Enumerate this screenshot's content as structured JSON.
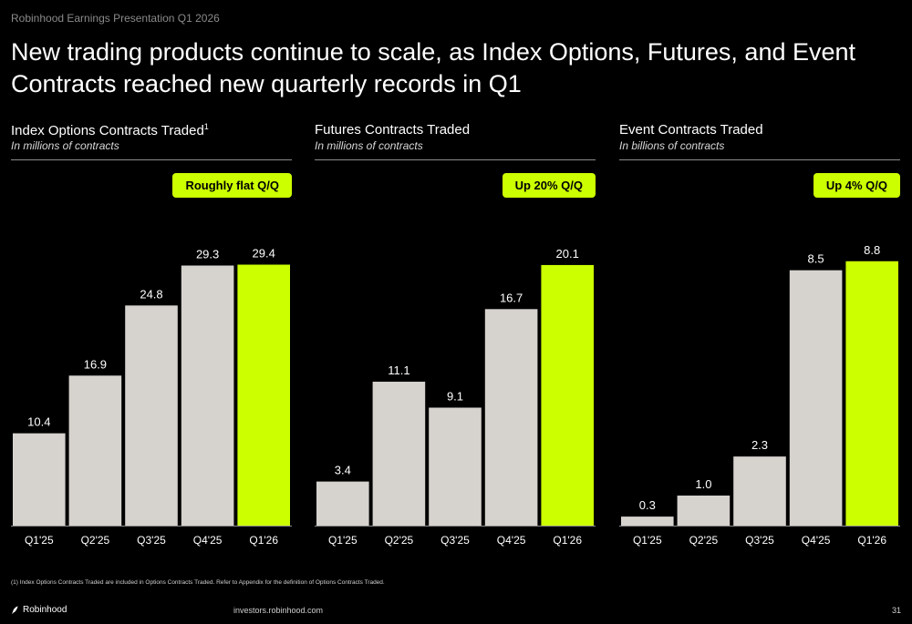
{
  "header": {
    "deck_title": "Robinhood Earnings Presentation Q1 2026"
  },
  "slide": {
    "title": "New trading products continue to scale, as Index Options, Futures, and Event Contracts reached new quarterly records in Q1"
  },
  "colors": {
    "bar_default": "#d6d2ce",
    "bar_highlight": "#ccff00",
    "badge": "#ccff00",
    "background": "#000000"
  },
  "chart_data": [
    {
      "type": "bar",
      "title": "Index Options Contracts Traded",
      "title_sup": "1",
      "subtitle": "In millions of contracts",
      "badge": "Roughly flat Q/Q",
      "categories": [
        "Q1'25",
        "Q2'25",
        "Q3'25",
        "Q4'25",
        "Q1'26"
      ],
      "values": [
        10.4,
        16.9,
        24.8,
        29.3,
        29.4
      ],
      "value_labels": [
        "10.4",
        "16.9",
        "24.8",
        "29.3",
        "29.4"
      ],
      "highlight_index": 4,
      "ylim": [
        0,
        35.2
      ]
    },
    {
      "type": "bar",
      "title": "Futures Contracts Traded",
      "title_sup": "",
      "subtitle": "In millions of contracts",
      "badge": "Up 20% Q/Q",
      "categories": [
        "Q1'25",
        "Q2'25",
        "Q3'25",
        "Q4'25",
        "Q1'26"
      ],
      "values": [
        3.4,
        11.1,
        9.1,
        16.7,
        20.1
      ],
      "value_labels": [
        "3.4",
        "11.1",
        "9.1",
        "16.7",
        "20.1"
      ],
      "highlight_index": 4,
      "ylim": [
        0,
        24.1
      ]
    },
    {
      "type": "bar",
      "title": "Event Contracts Traded",
      "title_sup": "",
      "subtitle": "In billions of contracts",
      "badge": "Up 4% Q/Q",
      "categories": [
        "Q1'25",
        "Q2'25",
        "Q3'25",
        "Q4'25",
        "Q1'26"
      ],
      "values": [
        0.3,
        1.0,
        2.3,
        8.5,
        8.8
      ],
      "value_labels": [
        "0.3",
        "1.0",
        "2.3",
        "8.5",
        "8.8"
      ],
      "highlight_index": 4,
      "ylim": [
        0,
        10.4
      ]
    }
  ],
  "footer": {
    "footnote": "(1) Index Options Contracts Traded are included in Options Contracts Traded. Refer to Appendix for the definition of Options Contracts Traded.",
    "logo_text": "Robinhood",
    "website": "investors.robinhood.com",
    "page_number": "31"
  }
}
